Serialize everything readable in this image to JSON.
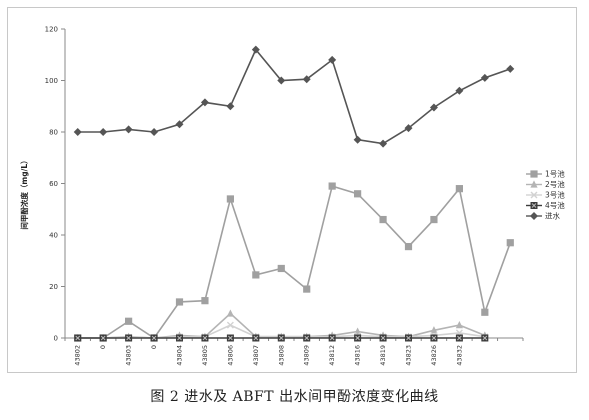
{
  "caption": "图 2   进水及 ABFT 出水间甲酚浓度变化曲线",
  "chart_data": {
    "type": "line",
    "ylabel": "间甲酚浓度（mg/L）",
    "xlabel": "",
    "ylim": [
      0,
      120
    ],
    "yticks": [
      0,
      20,
      40,
      60,
      80,
      100,
      120
    ],
    "grid": false,
    "legend_position": "right",
    "categories": [
      "43802",
      "0",
      "43803",
      "0",
      "43804",
      "43805",
      "43806",
      "43807",
      "43808",
      "43809",
      "43812",
      "43816",
      "43819",
      "43823",
      "43826",
      "43832",
      "",
      ""
    ],
    "series": [
      {
        "name": "1号池",
        "marker": "square",
        "color": "#a0a0a0",
        "values": [
          0,
          0,
          6.5,
          0,
          14,
          14.5,
          54,
          24.5,
          27,
          19,
          59,
          56,
          46,
          35.5,
          46,
          58,
          10,
          37
        ]
      },
      {
        "name": "2号池",
        "marker": "triangle",
        "color": "#b4b4b4",
        "values": [
          0,
          0,
          0.5,
          0,
          1,
          0.5,
          9.5,
          0.5,
          0.5,
          0.5,
          1,
          2.5,
          1,
          0.5,
          3,
          5,
          1,
          null
        ]
      },
      {
        "name": "3号池",
        "marker": "x",
        "color": "#d2d2d2",
        "values": [
          0,
          0,
          0.3,
          0,
          0.5,
          0.5,
          5,
          0.5,
          0.5,
          0.5,
          0.5,
          1,
          0.5,
          0.5,
          1,
          2,
          0.5,
          null
        ]
      },
      {
        "name": "4号池",
        "marker": "boxx",
        "color": "#3c3c3c",
        "values": [
          0,
          0,
          0,
          0,
          0,
          0,
          0,
          0,
          0,
          0,
          0,
          0,
          0,
          0,
          0,
          0,
          0,
          null
        ]
      },
      {
        "name": "进水",
        "marker": "diamond",
        "color": "#555555",
        "values": [
          80,
          80,
          81,
          80,
          83,
          91.5,
          90,
          112,
          100,
          100.5,
          108,
          77,
          75.5,
          81.5,
          89.5,
          96,
          101,
          104.5
        ]
      }
    ]
  }
}
